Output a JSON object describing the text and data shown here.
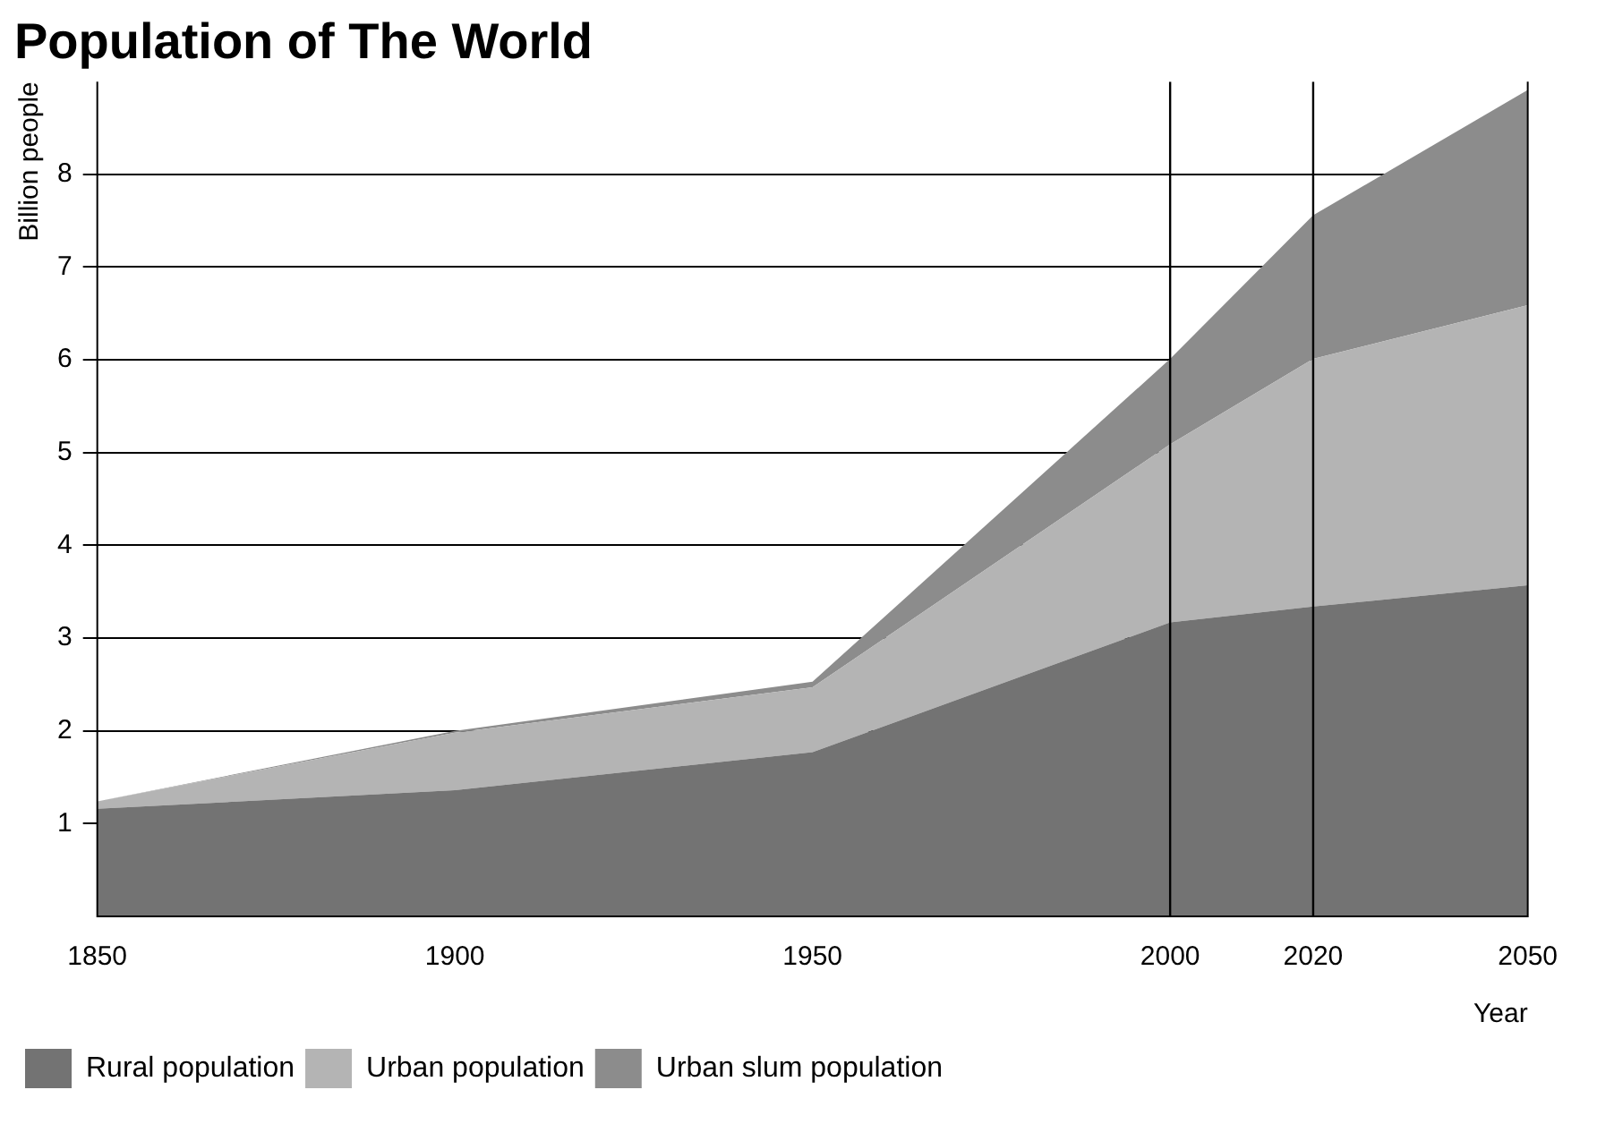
{
  "chart_data": {
    "type": "area",
    "title": "Population of The World",
    "xlabel": "Year",
    "ylabel": "Billion people",
    "x": [
      1850,
      1900,
      1950,
      2000,
      2020,
      2050
    ],
    "stacked": true,
    "series": [
      {
        "name": "Rural population",
        "color": "#737373",
        "values": [
          1.16,
          1.36,
          1.77,
          3.17,
          3.34,
          3.57
        ]
      },
      {
        "name": "Urban population",
        "color": "#b4b4b4",
        "values": [
          0.08,
          0.62,
          0.7,
          1.92,
          2.67,
          3.02
        ]
      },
      {
        "name": "Urban slum population",
        "color": "#8c8c8c",
        "values": [
          0,
          0.02,
          0.06,
          0.92,
          1.55,
          2.32
        ]
      }
    ],
    "xlim": [
      1850,
      2050
    ],
    "xticks": [
      1850,
      1900,
      1950,
      2000,
      2020,
      2050
    ],
    "ylim": [
      0,
      9
    ],
    "yticks": [
      1,
      2,
      3,
      4,
      5,
      6,
      7,
      8
    ],
    "grid": "y",
    "legend": "bottom left",
    "ref_lines": [
      {
        "axis": "x",
        "value": 2000,
        "color": "#000000"
      },
      {
        "axis": "x",
        "value": 2020,
        "color": "#000000"
      }
    ]
  }
}
